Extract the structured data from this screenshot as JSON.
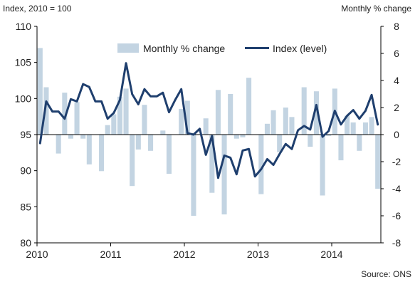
{
  "chart_data": {
    "type": "bar+line",
    "left_axis_title": "Index, 2010 = 100",
    "right_axis_title": "Monthly % change",
    "source": "Source: ONS",
    "legend": {
      "bars": "Monthly % change",
      "line": "Index (level)"
    },
    "left_axis": {
      "min": 80,
      "max": 110,
      "ticks": [
        "80",
        "85",
        "90",
        "95",
        "100",
        "105",
        "110"
      ]
    },
    "right_axis": {
      "min": -8,
      "max": 8,
      "ticks": [
        "-8",
        "-6",
        "-4",
        "-2",
        "0",
        "2",
        "4",
        "6",
        "8"
      ]
    },
    "x_axis": {
      "start_year": 2010,
      "months": 56,
      "ticks": [
        "2010",
        "2011",
        "2012",
        "2013",
        "2014"
      ]
    },
    "colors": {
      "bars": "#c3d4e2",
      "line": "#1f3f6e",
      "axis": "#000000"
    },
    "series": [
      {
        "name": "Monthly % change",
        "axis": "right",
        "values": [
          6.4,
          3.5,
          0.0,
          -1.4,
          3.1,
          -0.3,
          2.4,
          -0.3,
          -2.2,
          0.0,
          -2.7,
          0.7,
          1.5,
          2.8,
          3.4,
          -3.8,
          -1.1,
          2.2,
          -1.2,
          0.0,
          0.3,
          -2.9,
          0.0,
          1.9,
          2.5,
          -6.0,
          0.0,
          1.2,
          -4.3,
          3.3,
          -5.9,
          3.0,
          -0.3,
          -0.2,
          4.2,
          0.0,
          -4.4,
          0.8,
          1.8,
          -1.3,
          2.0,
          1.3,
          0.0,
          3.5,
          -0.9,
          3.2,
          -4.5,
          -0.1,
          3.4,
          -1.9,
          1.4,
          0.9,
          -1.2,
          0.9,
          1.3,
          -4.0
        ]
      },
      {
        "name": "Index (level)",
        "axis": "left",
        "values": [
          93.8,
          99.6,
          98.2,
          98.2,
          97.2,
          99.9,
          99.6,
          102.0,
          101.6,
          99.6,
          99.6,
          97.2,
          98.0,
          99.8,
          104.9,
          100.6,
          99.2,
          101.3,
          100.3,
          100.3,
          100.8,
          98.1,
          99.8,
          101.3,
          95.2,
          95.0,
          95.8,
          92.2,
          94.8,
          89.0,
          92.1,
          91.8,
          89.5,
          92.8,
          93.0,
          89.2,
          90.2,
          91.6,
          90.8,
          92.3,
          93.7,
          93.0,
          95.6,
          96.2,
          95.7,
          99.1,
          94.7,
          95.5,
          98.3,
          96.4,
          97.6,
          98.4,
          97.2,
          98.3,
          100.5,
          96.4
        ]
      }
    ]
  }
}
